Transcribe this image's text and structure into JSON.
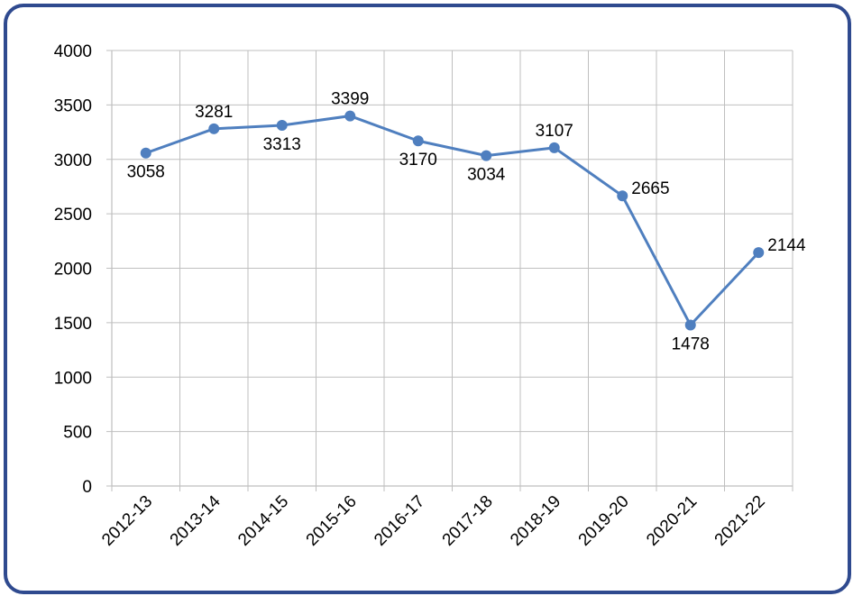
{
  "chart_data": {
    "type": "line",
    "title": "",
    "xlabel": "",
    "ylabel": "",
    "categories": [
      "2012-13",
      "2013-14",
      "2014-15",
      "2015-16",
      "2016-17",
      "2017-18",
      "2018-19",
      "2019-20",
      "2020-21",
      "2021-22"
    ],
    "series": [
      {
        "values": [
          3058,
          3281,
          3313,
          3399,
          3170,
          3034,
          3107,
          2665,
          1478,
          2144
        ]
      }
    ],
    "ylim": [
      0,
      4000
    ],
    "yticks": [
      0,
      500,
      1000,
      1500,
      2000,
      2500,
      3000,
      3500,
      4000
    ],
    "grid": "on",
    "legend": "none",
    "colors": {
      "line": "#4f7fbf",
      "grid": "#bfbfbf",
      "frame": "#2f4a8f"
    },
    "label_positions": [
      "below",
      "above",
      "below",
      "above",
      "below",
      "below",
      "above",
      "right",
      "below",
      "right"
    ]
  }
}
